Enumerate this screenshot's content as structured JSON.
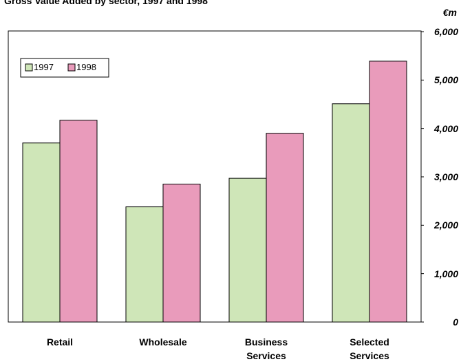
{
  "chart_data": {
    "type": "bar",
    "title": "Gross Value Added by sector, 1997 and 1998",
    "y_axis_label": "€m",
    "categories": [
      "Retail",
      "Wholesale",
      "Business Services",
      "Selected Services"
    ],
    "series": [
      {
        "name": "1997",
        "color": "#cfe6b8",
        "values": [
          3700,
          2380,
          2970,
          4510
        ]
      },
      {
        "name": "1998",
        "color": "#e99bbb",
        "values": [
          4170,
          2850,
          3900,
          5390
        ]
      }
    ],
    "ylim": [
      0,
      6000
    ],
    "yticks": [
      0,
      {
        "value": 1000,
        "label": "1,000"
      },
      {
        "value": 2000,
        "label": "2,000"
      },
      {
        "value": 3000,
        "label": "3,000"
      },
      {
        "value": 4000,
        "label": "4,000"
      },
      {
        "value": 5000,
        "label": "5,000"
      },
      {
        "value": 6000,
        "label": "6,000"
      }
    ],
    "legend": "upper left",
    "grid": false
  }
}
